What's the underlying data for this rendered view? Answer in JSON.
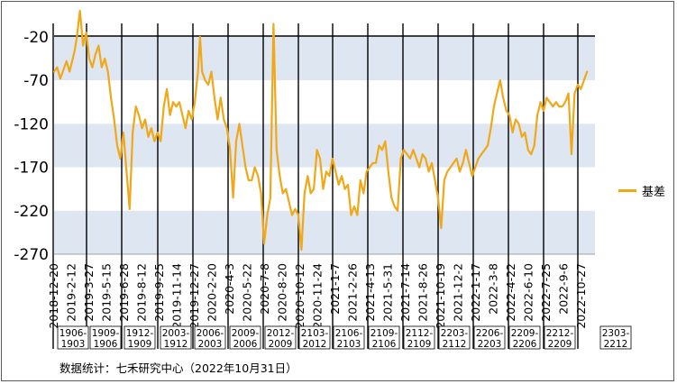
{
  "chart_data": {
    "type": "line",
    "ylim": [
      -270,
      10
    ],
    "yticks": [
      -20,
      -70,
      -120,
      -170,
      -220,
      -270
    ],
    "x_tick_labels": [
      "2018-12-20",
      "2019-2-12",
      "2019-3-27",
      "2019-5-15",
      "2019-6-28",
      "2019-8-12",
      "2019-9-25",
      "2019-11-14",
      "2019-12-27",
      "2020-2-20",
      "2020-4-3",
      "2020-5-22",
      "2020-7-8",
      "2020-8-20",
      "2020-10-12",
      "2020-11-24",
      "2021-1-7",
      "2021-2-26",
      "2021-4-13",
      "2021-5-31",
      "2021-7-14",
      "2021-8-26",
      "2021-10-19",
      "2021-12-2",
      "2022-1-17",
      "2022-3-8",
      "2022-4-22",
      "2022-6-10",
      "2022-7-25",
      "2022-9-6",
      "2022-10-27"
    ],
    "contract_labels": [
      {
        "top": "1906-",
        "bottom": "1903"
      },
      {
        "top": "1909-",
        "bottom": "1906"
      },
      {
        "top": "1912-",
        "bottom": "1909"
      },
      {
        "top": "2003-",
        "bottom": "1912"
      },
      {
        "top": "2006-",
        "bottom": "2003"
      },
      {
        "top": "2009-",
        "bottom": "2006"
      },
      {
        "top": "2012-",
        "bottom": "2009"
      },
      {
        "top": "2103-",
        "bottom": "2012"
      },
      {
        "top": "2106-",
        "bottom": "2103"
      },
      {
        "top": "2109-",
        "bottom": "2106"
      },
      {
        "top": "2112-",
        "bottom": "2109"
      },
      {
        "top": "2203-",
        "bottom": "2112"
      },
      {
        "top": "2206-",
        "bottom": "2203"
      },
      {
        "top": "2209-",
        "bottom": "2206"
      },
      {
        "top": "2212-",
        "bottom": "2209"
      },
      {
        "top": "2303-",
        "bottom": "2212"
      }
    ],
    "series": [
      {
        "name": "基差",
        "color": "#f0a818",
        "points": [
          [
            0,
            -60
          ],
          [
            0.3,
            -55
          ],
          [
            0.6,
            -68
          ],
          [
            0.9,
            -58
          ],
          [
            1.2,
            -48
          ],
          [
            1.5,
            -60
          ],
          [
            1.8,
            -45
          ],
          [
            2.0,
            -35
          ],
          [
            2.2,
            -20
          ],
          [
            2.5,
            10
          ],
          [
            2.8,
            -30
          ],
          [
            3.1,
            -15
          ],
          [
            3.4,
            -45
          ],
          [
            3.7,
            -55
          ],
          [
            4.0,
            -40
          ],
          [
            4.3,
            -30
          ],
          [
            4.6,
            -55
          ],
          [
            4.9,
            -45
          ],
          [
            5.2,
            -60
          ],
          [
            5.5,
            -90
          ],
          [
            5.8,
            -115
          ],
          [
            6.1,
            -145
          ],
          [
            6.4,
            -160
          ],
          [
            6.7,
            -130
          ],
          [
            7.0,
            -175
          ],
          [
            7.3,
            -218
          ],
          [
            7.6,
            -130
          ],
          [
            7.9,
            -100
          ],
          [
            8.2,
            -110
          ],
          [
            8.5,
            -125
          ],
          [
            8.8,
            -115
          ],
          [
            9.1,
            -135
          ],
          [
            9.4,
            -125
          ],
          [
            9.7,
            -140
          ],
          [
            10.0,
            -130
          ],
          [
            10.3,
            -140
          ],
          [
            10.6,
            -100
          ],
          [
            10.9,
            -80
          ],
          [
            11.2,
            -110
          ],
          [
            11.5,
            -95
          ],
          [
            11.8,
            -100
          ],
          [
            12.1,
            -95
          ],
          [
            12.4,
            -110
          ],
          [
            12.7,
            -125
          ],
          [
            13.0,
            -105
          ],
          [
            13.3,
            -115
          ],
          [
            13.6,
            -95
          ],
          [
            13.9,
            -60
          ],
          [
            14.1,
            -20
          ],
          [
            14.3,
            -60
          ],
          [
            14.6,
            -70
          ],
          [
            14.9,
            -75
          ],
          [
            15.2,
            -60
          ],
          [
            15.5,
            -90
          ],
          [
            15.8,
            -115
          ],
          [
            16.1,
            -90
          ],
          [
            16.4,
            -115
          ],
          [
            16.7,
            -125
          ],
          [
            17.0,
            -150
          ],
          [
            17.3,
            -205
          ],
          [
            17.6,
            -140
          ],
          [
            17.9,
            -120
          ],
          [
            18.2,
            -145
          ],
          [
            18.5,
            -170
          ],
          [
            18.8,
            -185
          ],
          [
            19.1,
            -185
          ],
          [
            19.4,
            -170
          ],
          [
            19.7,
            -180
          ],
          [
            20.0,
            -200
          ],
          [
            20.3,
            -258
          ],
          [
            20.6,
            -225
          ],
          [
            20.9,
            -205
          ],
          [
            21.2,
            -5
          ],
          [
            21.5,
            -150
          ],
          [
            21.8,
            -180
          ],
          [
            22.1,
            -200
          ],
          [
            22.4,
            -195
          ],
          [
            22.7,
            -210
          ],
          [
            23.0,
            -225
          ],
          [
            23.3,
            -218
          ],
          [
            23.6,
            -225
          ],
          [
            23.9,
            -265
          ],
          [
            24.2,
            -200
          ],
          [
            24.5,
            -180
          ],
          [
            24.8,
            -200
          ],
          [
            25.1,
            -195
          ],
          [
            25.4,
            -150
          ],
          [
            25.7,
            -160
          ],
          [
            26.0,
            -195
          ],
          [
            26.3,
            -175
          ],
          [
            26.6,
            -180
          ],
          [
            26.9,
            -160
          ],
          [
            27.2,
            -175
          ],
          [
            27.5,
            -190
          ],
          [
            27.8,
            -180
          ],
          [
            28.1,
            -195
          ],
          [
            28.4,
            -190
          ],
          [
            28.7,
            -225
          ],
          [
            29.0,
            -215
          ],
          [
            29.3,
            -225
          ],
          [
            29.6,
            -185
          ],
          [
            29.9,
            -200
          ],
          [
            30.2,
            -175
          ],
          [
            30.5,
            -170
          ],
          [
            30.8,
            -165
          ],
          [
            31.1,
            -165
          ],
          [
            31.4,
            -145
          ],
          [
            31.7,
            -150
          ],
          [
            32.0,
            -140
          ],
          [
            32.3,
            -175
          ],
          [
            32.6,
            -205
          ],
          [
            32.9,
            -215
          ],
          [
            33.2,
            -220
          ],
          [
            33.5,
            -160
          ],
          [
            33.8,
            -150
          ],
          [
            34.1,
            -155
          ],
          [
            34.4,
            -160
          ],
          [
            34.7,
            -150
          ],
          [
            35.0,
            -160
          ],
          [
            35.3,
            -170
          ],
          [
            35.6,
            -155
          ],
          [
            35.9,
            -160
          ],
          [
            36.2,
            -175
          ],
          [
            36.5,
            -165
          ],
          [
            36.8,
            -185
          ],
          [
            37.1,
            -205
          ],
          [
            37.4,
            -240
          ],
          [
            37.7,
            -185
          ],
          [
            38.0,
            -175
          ],
          [
            38.3,
            -170
          ],
          [
            38.6,
            -165
          ],
          [
            38.9,
            -160
          ],
          [
            39.2,
            -175
          ],
          [
            39.5,
            -165
          ],
          [
            39.8,
            -150
          ],
          [
            40.1,
            -165
          ],
          [
            40.4,
            -180
          ],
          [
            40.7,
            -170
          ],
          [
            41.0,
            -160
          ],
          [
            41.3,
            -155
          ],
          [
            41.6,
            -150
          ],
          [
            41.9,
            -145
          ],
          [
            42.2,
            -125
          ],
          [
            42.5,
            -100
          ],
          [
            42.8,
            -85
          ],
          [
            43.1,
            -70
          ],
          [
            43.4,
            -90
          ],
          [
            43.7,
            -105
          ],
          [
            44.0,
            -110
          ],
          [
            44.3,
            -130
          ],
          [
            44.6,
            -115
          ],
          [
            44.9,
            -120
          ],
          [
            45.2,
            -135
          ],
          [
            45.5,
            -130
          ],
          [
            45.8,
            -150
          ],
          [
            46.1,
            -155
          ],
          [
            46.4,
            -145
          ],
          [
            46.7,
            -110
          ],
          [
            47.0,
            -95
          ],
          [
            47.3,
            -105
          ],
          [
            47.6,
            -90
          ],
          [
            47.9,
            -95
          ],
          [
            48.2,
            -100
          ],
          [
            48.5,
            -95
          ],
          [
            48.8,
            -100
          ],
          [
            49.1,
            -100
          ],
          [
            49.4,
            -95
          ],
          [
            49.7,
            -85
          ],
          [
            50.0,
            -155
          ],
          [
            50.3,
            -85
          ],
          [
            50.6,
            -75
          ],
          [
            50.9,
            -80
          ],
          [
            51.2,
            -70
          ],
          [
            51.5,
            -60
          ]
        ]
      }
    ],
    "legend": {
      "label": "基差",
      "placement": "right"
    },
    "source": "数据统计：七禾研究中心（2022年10月31日）"
  }
}
